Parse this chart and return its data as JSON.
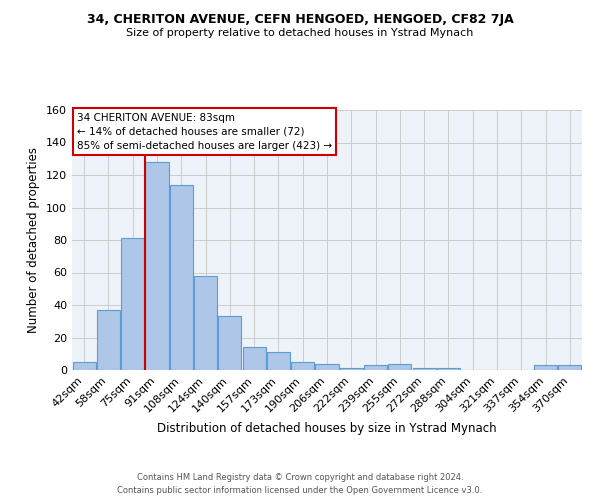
{
  "title_line1": "34, CHERITON AVENUE, CEFN HENGOED, HENGOED, CF82 7JA",
  "title_line2": "Size of property relative to detached houses in Ystrad Mynach",
  "xlabel": "Distribution of detached houses by size in Ystrad Mynach",
  "ylabel": "Number of detached properties",
  "footer_line1": "Contains HM Land Registry data © Crown copyright and database right 2024.",
  "footer_line2": "Contains public sector information licensed under the Open Government Licence v3.0.",
  "bar_labels": [
    "42sqm",
    "58sqm",
    "75sqm",
    "91sqm",
    "108sqm",
    "124sqm",
    "140sqm",
    "157sqm",
    "173sqm",
    "190sqm",
    "206sqm",
    "222sqm",
    "239sqm",
    "255sqm",
    "272sqm",
    "288sqm",
    "304sqm",
    "321sqm",
    "337sqm",
    "354sqm",
    "370sqm"
  ],
  "bar_values": [
    5,
    37,
    81,
    128,
    114,
    58,
    33,
    14,
    11,
    5,
    4,
    1,
    3,
    4,
    1,
    1,
    0,
    0,
    0,
    3,
    3
  ],
  "bar_color": "#aec6e8",
  "bar_edgecolor": "#5a9fd4",
  "vline_color": "#cc0000",
  "annotation_text": "34 CHERITON AVENUE: 83sqm\n← 14% of detached houses are smaller (72)\n85% of semi-detached houses are larger (423) →",
  "annotation_box_edgecolor": "#cc0000",
  "annotation_box_facecolor": "white",
  "ylim": [
    0,
    160
  ],
  "yticks": [
    0,
    20,
    40,
    60,
    80,
    100,
    120,
    140,
    160
  ],
  "grid_color": "#cccccc",
  "background_color": "#eef2f9",
  "fig_background": "white"
}
